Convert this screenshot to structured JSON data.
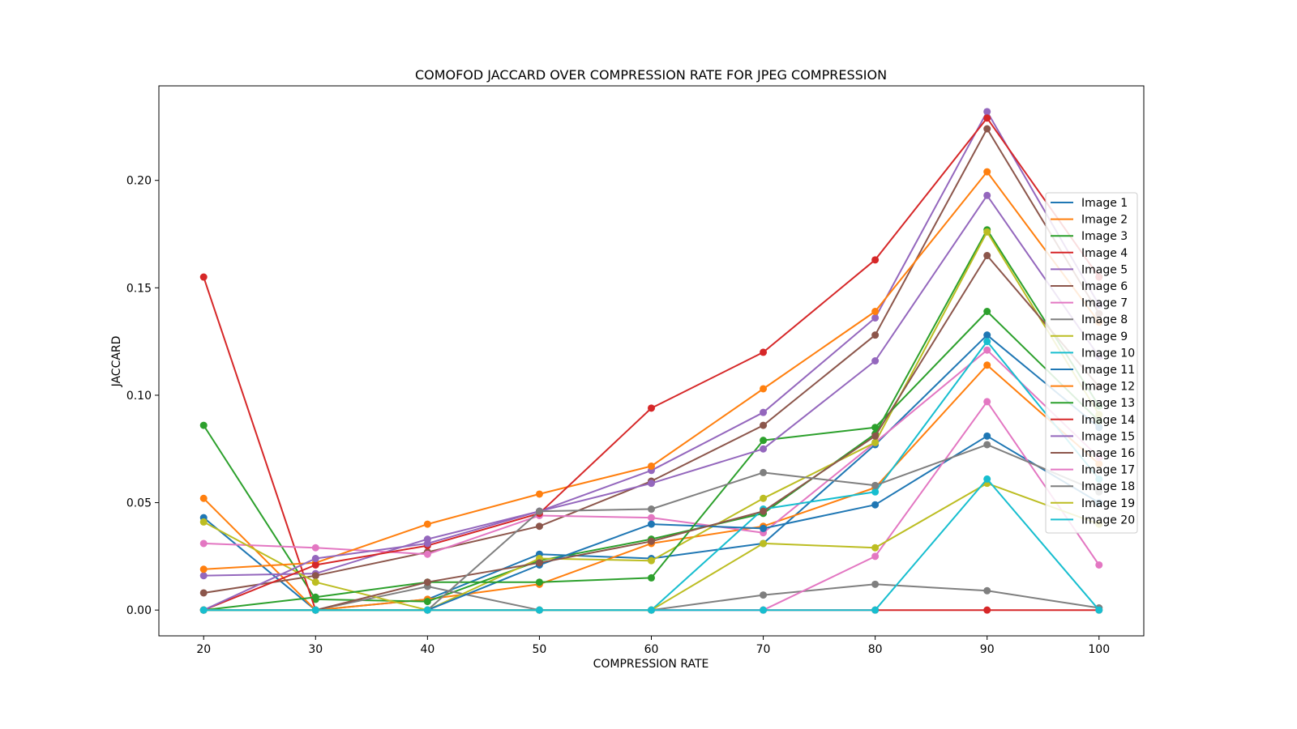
{
  "chart_data": {
    "type": "line",
    "title": "COMOFOD JACCARD OVER COMPRESSION RATE FOR JPEG COMPRESSION",
    "xlabel": "COMPRESSION RATE",
    "ylabel": "JACCARD",
    "x": [
      20,
      30,
      40,
      50,
      60,
      70,
      80,
      90,
      100
    ],
    "xlim": [
      16,
      104
    ],
    "ylim": [
      -0.012,
      0.244
    ],
    "xticks": [
      20,
      30,
      40,
      50,
      60,
      70,
      80,
      90,
      100
    ],
    "yticks": [
      0.0,
      0.05,
      0.1,
      0.15,
      0.2
    ],
    "ytick_labels": [
      "0.00",
      "0.05",
      "0.10",
      "0.15",
      "0.20"
    ],
    "grid": false,
    "legend_position": "right",
    "series": [
      {
        "name": "Image 1",
        "color": "#1f77b4",
        "values": [
          0.043,
          0.0,
          0.005,
          0.026,
          0.024,
          0.031,
          0.077,
          0.128,
          0.085
        ]
      },
      {
        "name": "Image 2",
        "color": "#ff7f0e",
        "values": [
          0.052,
          0.0,
          0.005,
          0.012,
          0.031,
          0.039,
          0.057,
          0.114,
          0.068
        ]
      },
      {
        "name": "Image 3",
        "color": "#2ca02c",
        "values": [
          0.086,
          0.005,
          0.004,
          0.023,
          0.033,
          0.045,
          0.082,
          0.177,
          0.095
        ]
      },
      {
        "name": "Image 4",
        "color": "#d62728",
        "values": [
          0.155,
          0.0,
          0.0,
          0.0,
          0.0,
          0.0,
          0.0,
          0.0,
          0.0
        ]
      },
      {
        "name": "Image 5",
        "color": "#9467bd",
        "values": [
          0.016,
          0.017,
          0.033,
          0.046,
          0.065,
          0.092,
          0.136,
          0.232,
          0.142
        ]
      },
      {
        "name": "Image 6",
        "color": "#8c564b",
        "values": [
          0.008,
          0.016,
          0.027,
          0.039,
          0.06,
          0.086,
          0.128,
          0.224,
          0.138
        ]
      },
      {
        "name": "Image 7",
        "color": "#e377c2",
        "values": [
          0.031,
          0.029,
          0.026,
          0.044,
          0.043,
          0.036,
          0.078,
          0.121,
          0.071
        ]
      },
      {
        "name": "Image 8",
        "color": "#7f7f7f",
        "values": [
          0.0,
          0.0,
          0.011,
          0.0,
          0.0,
          0.007,
          0.012,
          0.009,
          0.001
        ]
      },
      {
        "name": "Image 9",
        "color": "#bcbd22",
        "values": [
          0.041,
          0.013,
          0.0,
          0.024,
          0.023,
          0.052,
          0.078,
          0.176,
          0.091
        ]
      },
      {
        "name": "Image 10",
        "color": "#17becf",
        "values": [
          0.0,
          0.0,
          0.0,
          0.0,
          0.0,
          0.047,
          0.055,
          0.125,
          0.061
        ]
      },
      {
        "name": "Image 11",
        "color": "#1f77b4",
        "values": [
          0.0,
          0.0,
          0.0,
          0.021,
          0.04,
          0.038,
          0.049,
          0.081,
          0.05
        ]
      },
      {
        "name": "Image 12",
        "color": "#ff7f0e",
        "values": [
          0.019,
          0.022,
          0.04,
          0.054,
          0.067,
          0.103,
          0.139,
          0.204,
          0.134
        ]
      },
      {
        "name": "Image 13",
        "color": "#2ca02c",
        "values": [
          0.0,
          0.006,
          0.013,
          0.013,
          0.015,
          0.079,
          0.085,
          0.139,
          0.088
        ]
      },
      {
        "name": "Image 14",
        "color": "#d62728",
        "values": [
          0.0,
          0.021,
          0.03,
          0.045,
          0.094,
          0.12,
          0.163,
          0.229,
          0.155
        ]
      },
      {
        "name": "Image 15",
        "color": "#9467bd",
        "values": [
          0.0,
          0.024,
          0.031,
          0.046,
          0.059,
          0.075,
          0.116,
          0.193,
          0.118
        ]
      },
      {
        "name": "Image 16",
        "color": "#8c564b",
        "values": [
          0.0,
          0.0,
          0.013,
          0.022,
          0.032,
          0.046,
          0.081,
          0.165,
          0.104
        ]
      },
      {
        "name": "Image 17",
        "color": "#e377c2",
        "values": [
          0.0,
          0.0,
          0.0,
          0.0,
          0.0,
          0.0,
          0.025,
          0.097,
          0.021
        ]
      },
      {
        "name": "Image 18",
        "color": "#7f7f7f",
        "values": [
          0.0,
          0.0,
          0.0,
          0.046,
          0.047,
          0.064,
          0.058,
          0.077,
          0.055
        ]
      },
      {
        "name": "Image 19",
        "color": "#bcbd22",
        "values": [
          0.0,
          0.0,
          0.0,
          0.0,
          0.0,
          0.031,
          0.029,
          0.059,
          0.04
        ]
      },
      {
        "name": "Image 20",
        "color": "#17becf",
        "values": [
          0.0,
          0.0,
          0.0,
          0.0,
          0.0,
          0.0,
          0.0,
          0.061,
          0.0
        ]
      }
    ]
  }
}
